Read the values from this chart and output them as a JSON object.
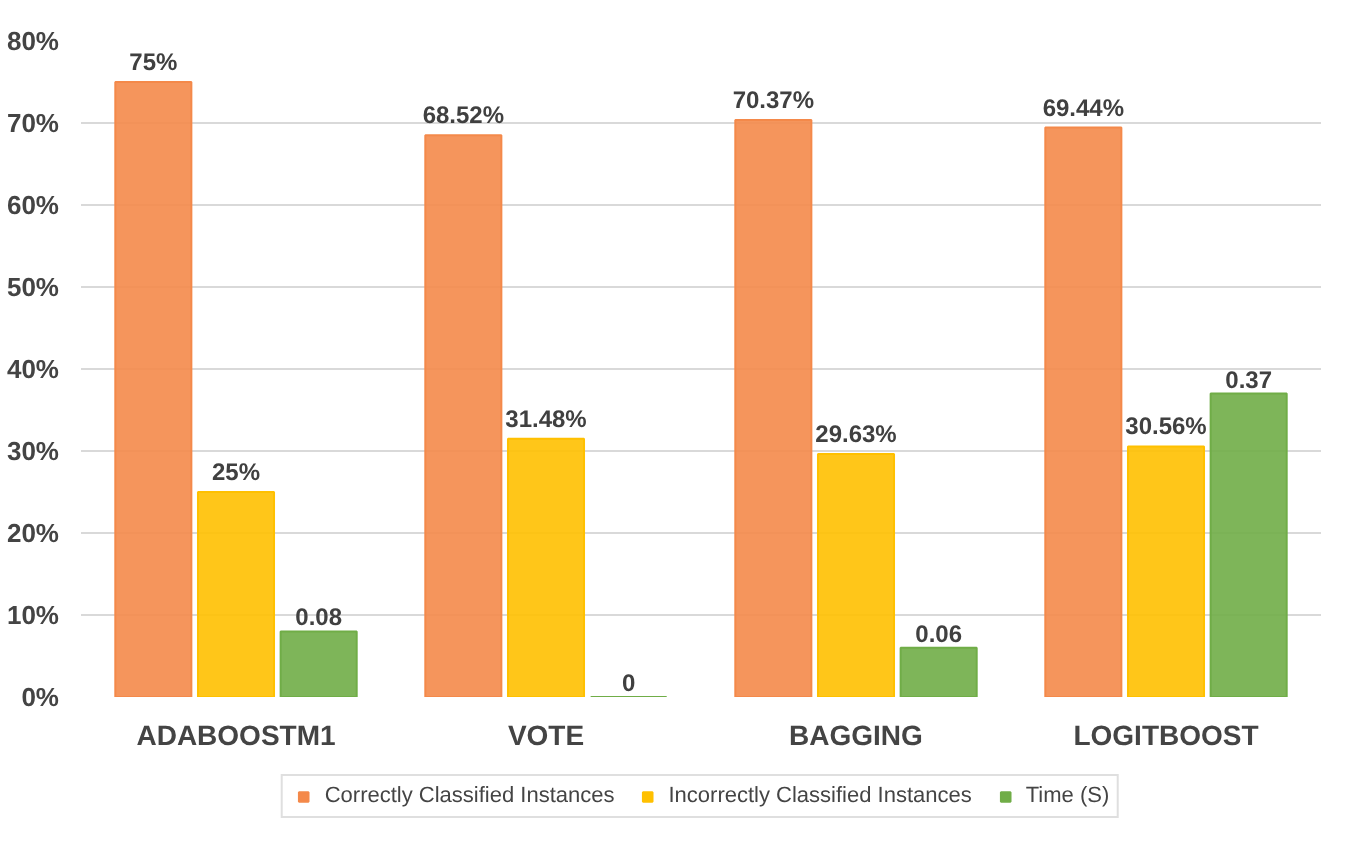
{
  "chart_data": {
    "type": "bar",
    "categories": [
      "ADABOOSTM1",
      "VOTE",
      "BAGGING",
      "LOGITBOOST"
    ],
    "series": [
      {
        "name": "Correctly Classified Instances",
        "color": "#f4894a",
        "values": [
          0.75,
          0.6852,
          0.7037,
          0.6944
        ],
        "value_labels": [
          "75%",
          "68.52%",
          "70.37%",
          "69.44%"
        ]
      },
      {
        "name": "Incorrectly Classified Instances",
        "color": "#ffc000",
        "values": [
          0.25,
          0.3148,
          0.2963,
          0.3056
        ],
        "value_labels": [
          "25%",
          "31.48%",
          "29.63%",
          "30.56%"
        ]
      },
      {
        "name": "Time (S)",
        "color": "#70ad47",
        "values": [
          0.08,
          0,
          0.06,
          0.37
        ],
        "value_labels": [
          "0.08",
          "0",
          "0.06",
          "0.37"
        ]
      }
    ],
    "ylim": [
      0,
      0.8
    ],
    "yticks": [
      {
        "value": 0,
        "label": "0%"
      },
      {
        "value": 0.1,
        "label": "10%"
      },
      {
        "value": 0.2,
        "label": "20%"
      },
      {
        "value": 0.3,
        "label": "30%"
      },
      {
        "value": 0.4,
        "label": "40%"
      },
      {
        "value": 0.5,
        "label": "50%"
      },
      {
        "value": 0.6,
        "label": "60%"
      },
      {
        "value": 0.7,
        "label": "70%"
      },
      {
        "value": 0.8,
        "label": "80%"
      }
    ],
    "grid": "y",
    "legend": "bottom"
  }
}
